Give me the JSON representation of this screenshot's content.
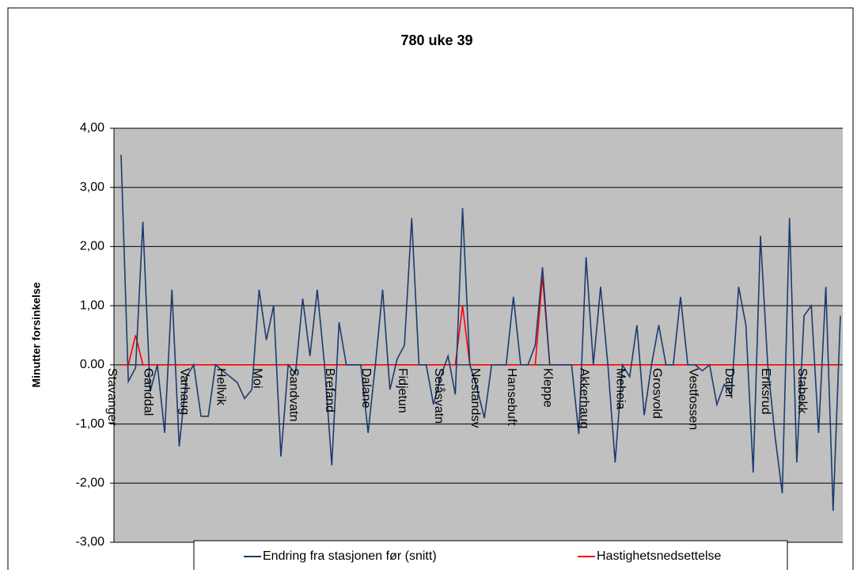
{
  "chart_data": {
    "type": "line",
    "title": "780 uke 39",
    "y_label": "Minutter forsinkelse",
    "categories": [
      "Stavanger",
      null,
      null,
      null,
      null,
      "Ganddal",
      null,
      null,
      null,
      null,
      "Varhaug",
      null,
      null,
      null,
      null,
      "Hellvik",
      null,
      null,
      null,
      null,
      "Moi",
      null,
      null,
      null,
      null,
      "Sandvatn",
      null,
      null,
      null,
      null,
      "Brefand",
      null,
      null,
      null,
      null,
      "Dalane",
      null,
      null,
      null,
      null,
      "Fidjetun",
      null,
      null,
      null,
      null,
      "Selåsvatn",
      null,
      null,
      null,
      null,
      "Nestandsv",
      null,
      null,
      null,
      null,
      "Hansebuft",
      null,
      null,
      null,
      null,
      "Kleppe",
      null,
      null,
      null,
      null,
      "Akkerhaug",
      null,
      null,
      null,
      null,
      "Meheia",
      null,
      null,
      null,
      null,
      "Grosvold",
      null,
      null,
      null,
      null,
      "Vestfossen",
      null,
      null,
      null,
      null,
      "Daler",
      null,
      null,
      null,
      null,
      "Eriksrud",
      null,
      null,
      null,
      null,
      "Stabekk",
      null,
      null,
      null,
      null
    ],
    "series": [
      {
        "name": "Endring fra stasjonen før (snitt)",
        "color": "#1b3c6e",
        "values": [
          3.55,
          -0.28,
          -0.05,
          2.42,
          -0.45,
          0,
          -1.15,
          1.27,
          -1.38,
          -0.2,
          0,
          -0.87,
          -0.87,
          0,
          -0.1,
          -0.2,
          -0.3,
          -0.57,
          -0.42,
          1.27,
          0.42,
          1.0,
          -1.55,
          0,
          -0.15,
          1.12,
          0.15,
          1.27,
          0,
          -1.7,
          0.72,
          0,
          0,
          0,
          -1.15,
          0,
          1.27,
          -0.42,
          0.1,
          0.33,
          2.48,
          0,
          0,
          -0.67,
          -0.2,
          0.15,
          -0.5,
          2.65,
          0,
          -0.4,
          -0.9,
          0,
          0,
          0,
          1.15,
          0,
          0,
          0.33,
          1.65,
          0,
          0,
          0,
          0,
          -1.17,
          1.82,
          0,
          1.32,
          0,
          -1.65,
          0,
          -0.2,
          0.67,
          -0.85,
          0,
          0.67,
          0,
          0,
          1.15,
          0,
          0,
          -0.1,
          0,
          -0.67,
          -0.33,
          -0.5,
          1.32,
          0.67,
          -1.82,
          2.18,
          0,
          -1.2,
          -2.17,
          2.48,
          -1.65,
          0.83,
          1.0,
          -1.15,
          1.32,
          -2.47,
          0.83
        ]
      },
      {
        "name": "Hastighetsnedsettelse",
        "color": "#ff0000",
        "values": [
          0,
          0,
          0.5,
          0,
          0,
          0,
          0,
          0,
          0,
          0,
          0,
          0,
          0,
          0,
          0,
          0,
          0,
          0,
          0,
          0,
          0,
          0,
          0,
          0,
          0,
          0,
          0,
          0,
          0,
          0,
          0,
          0,
          0,
          0,
          0,
          0,
          0,
          0,
          0,
          0,
          0,
          0,
          0,
          0,
          0,
          0,
          0,
          1.0,
          0,
          0,
          0,
          0,
          0,
          0,
          0,
          0,
          0,
          0,
          1.5,
          0,
          0,
          0,
          0,
          0,
          0,
          0,
          0,
          0,
          0,
          0,
          0,
          0,
          0,
          0,
          0,
          0,
          0,
          0,
          0,
          0,
          0,
          0,
          0,
          0,
          0,
          0,
          0,
          0,
          0,
          0,
          0,
          0,
          0,
          0,
          0,
          0,
          0,
          0,
          0,
          0
        ]
      }
    ],
    "ylim": [
      -3,
      4
    ],
    "yticks": [
      {
        "value": 4,
        "label": "4,00"
      },
      {
        "value": 3,
        "label": "3,00"
      },
      {
        "value": 2,
        "label": "2,00"
      },
      {
        "value": 1,
        "label": "1,00"
      },
      {
        "value": 0,
        "label": "0.00"
      },
      {
        "value": -1,
        "label": "-1,00"
      },
      {
        "value": -2,
        "label": "-2,00"
      },
      {
        "value": -3,
        "label": "-3,00"
      }
    ],
    "grid": true,
    "legend": "bottom"
  }
}
